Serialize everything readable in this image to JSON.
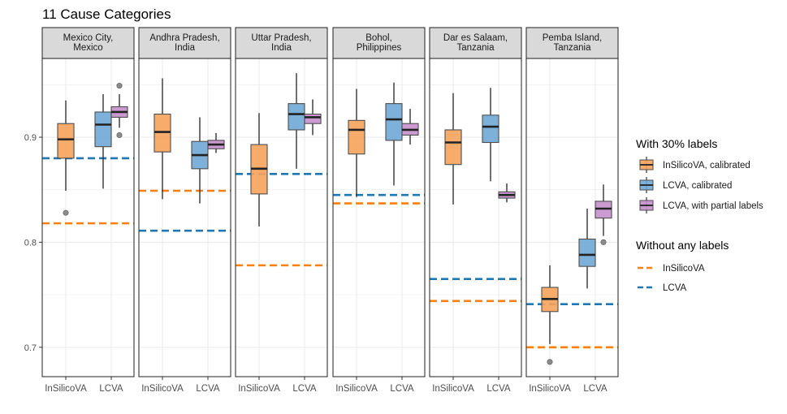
{
  "chart_data": {
    "type": "boxplot",
    "title": "11 Cause Categories",
    "xlabel": "",
    "ylabel": "",
    "ylim": [
      0.672,
      0.975
    ],
    "yticks": [
      0.7,
      0.8,
      0.9
    ],
    "ytick_labels": [
      "0.7",
      "0.8",
      "0.9"
    ],
    "categories": [
      "InSilicoVA",
      "LCVA"
    ],
    "panels": [
      {
        "title_lines": [
          "Mexico City,",
          "Mexico"
        ],
        "boxes": [
          {
            "method": "insilico_cal",
            "category": "InSilicoVA",
            "whisker_low": 0.849,
            "q1": 0.88,
            "median": 0.898,
            "q3": 0.913,
            "whisker_high": 0.935,
            "outliers": [
              0.828
            ]
          },
          {
            "method": "lcva_cal",
            "category": "LCVA",
            "whisker_low": 0.851,
            "q1": 0.891,
            "median": 0.912,
            "q3": 0.924,
            "whisker_high": 0.941,
            "outliers": []
          },
          {
            "method": "lcva_partial",
            "category": "LCVA",
            "whisker_low": 0.909,
            "q1": 0.919,
            "median": 0.924,
            "q3": 0.929,
            "whisker_high": 0.941,
            "outliers": [
              0.949,
              0.902
            ]
          }
        ],
        "baselines": {
          "insilico": 0.818,
          "lcva": 0.88
        }
      },
      {
        "title_lines": [
          "Andhra Pradesh,",
          "India"
        ],
        "boxes": [
          {
            "method": "insilico_cal",
            "category": "InSilicoVA",
            "whisker_low": 0.841,
            "q1": 0.886,
            "median": 0.905,
            "q3": 0.922,
            "whisker_high": 0.956,
            "outliers": []
          },
          {
            "method": "lcva_cal",
            "category": "LCVA",
            "whisker_low": 0.837,
            "q1": 0.87,
            "median": 0.883,
            "q3": 0.896,
            "whisker_high": 0.919,
            "outliers": []
          },
          {
            "method": "lcva_partial",
            "category": "LCVA",
            "whisker_low": 0.885,
            "q1": 0.889,
            "median": 0.893,
            "q3": 0.897,
            "whisker_high": 0.904,
            "outliers": []
          }
        ],
        "baselines": {
          "insilico": 0.849,
          "lcva": 0.811
        }
      },
      {
        "title_lines": [
          "Uttar Pradesh,",
          "India"
        ],
        "boxes": [
          {
            "method": "insilico_cal",
            "category": "InSilicoVA",
            "whisker_low": 0.815,
            "q1": 0.846,
            "median": 0.87,
            "q3": 0.893,
            "whisker_high": 0.923,
            "outliers": []
          },
          {
            "method": "lcva_cal",
            "category": "LCVA",
            "whisker_low": 0.87,
            "q1": 0.907,
            "median": 0.922,
            "q3": 0.932,
            "whisker_high": 0.961,
            "outliers": []
          },
          {
            "method": "lcva_partial",
            "category": "LCVA",
            "whisker_low": 0.902,
            "q1": 0.913,
            "median": 0.919,
            "q3": 0.922,
            "whisker_high": 0.936,
            "outliers": []
          }
        ],
        "baselines": {
          "insilico": 0.778,
          "lcva": 0.865
        }
      },
      {
        "title_lines": [
          "Bohol,",
          "Philippines"
        ],
        "boxes": [
          {
            "method": "insilico_cal",
            "category": "InSilicoVA",
            "whisker_low": 0.843,
            "q1": 0.884,
            "median": 0.907,
            "q3": 0.916,
            "whisker_high": 0.946,
            "outliers": []
          },
          {
            "method": "lcva_cal",
            "category": "LCVA",
            "whisker_low": 0.854,
            "q1": 0.897,
            "median": 0.917,
            "q3": 0.932,
            "whisker_high": 0.952,
            "outliers": []
          },
          {
            "method": "lcva_partial",
            "category": "LCVA",
            "whisker_low": 0.893,
            "q1": 0.902,
            "median": 0.907,
            "q3": 0.913,
            "whisker_high": 0.927,
            "outliers": []
          }
        ],
        "baselines": {
          "insilico": 0.837,
          "lcva": 0.845
        }
      },
      {
        "title_lines": [
          "Dar es Salaam,",
          "Tanzania"
        ],
        "boxes": [
          {
            "method": "insilico_cal",
            "category": "InSilicoVA",
            "whisker_low": 0.836,
            "q1": 0.874,
            "median": 0.895,
            "q3": 0.907,
            "whisker_high": 0.942,
            "outliers": []
          },
          {
            "method": "lcva_cal",
            "category": "LCVA",
            "whisker_low": 0.858,
            "q1": 0.895,
            "median": 0.91,
            "q3": 0.921,
            "whisker_high": 0.947,
            "outliers": []
          },
          {
            "method": "lcva_partial",
            "category": "LCVA",
            "whisker_low": 0.838,
            "q1": 0.842,
            "median": 0.845,
            "q3": 0.848,
            "whisker_high": 0.856,
            "outliers": []
          }
        ],
        "baselines": {
          "insilico": 0.744,
          "lcva": 0.765
        }
      },
      {
        "title_lines": [
          "Pemba Island,",
          "Tanzania"
        ],
        "boxes": [
          {
            "method": "insilico_cal",
            "category": "InSilicoVA",
            "whisker_low": 0.703,
            "q1": 0.734,
            "median": 0.746,
            "q3": 0.757,
            "whisker_high": 0.778,
            "outliers": [
              0.686
            ]
          },
          {
            "method": "lcva_cal",
            "category": "LCVA",
            "whisker_low": 0.756,
            "q1": 0.777,
            "median": 0.788,
            "q3": 0.803,
            "whisker_high": 0.832,
            "outliers": []
          },
          {
            "method": "lcva_partial",
            "category": "LCVA",
            "whisker_low": 0.806,
            "q1": 0.823,
            "median": 0.832,
            "q3": 0.839,
            "whisker_high": 0.855,
            "outliers": [
              0.8
            ]
          }
        ],
        "baselines": {
          "insilico": 0.7,
          "lcva": 0.741
        }
      }
    ],
    "legend": {
      "placement": "right",
      "group1_title": "With 30% labels",
      "group1_items": [
        {
          "key": "insilico_cal",
          "label": "InSilicoVA, calibrated"
        },
        {
          "key": "lcva_cal",
          "label": "LCVA, calibrated"
        },
        {
          "key": "lcva_partial",
          "label": "LCVA, with partial labels"
        }
      ],
      "group2_title": "Without any labels",
      "group2_items": [
        {
          "key": "insilico",
          "label": "InSilicoVA"
        },
        {
          "key": "lcva",
          "label": "LCVA"
        }
      ]
    },
    "colors": {
      "insilico_cal": "#F7A35C",
      "lcva_cal": "#6FA8D6",
      "lcva_partial": "#C58FCB",
      "insilico_line": "#FF7F0E",
      "lcva_line": "#1F77B4",
      "strip": "#D9D9D9",
      "grid": "#EBEBEB",
      "outlier": "#7F7F7F"
    }
  }
}
